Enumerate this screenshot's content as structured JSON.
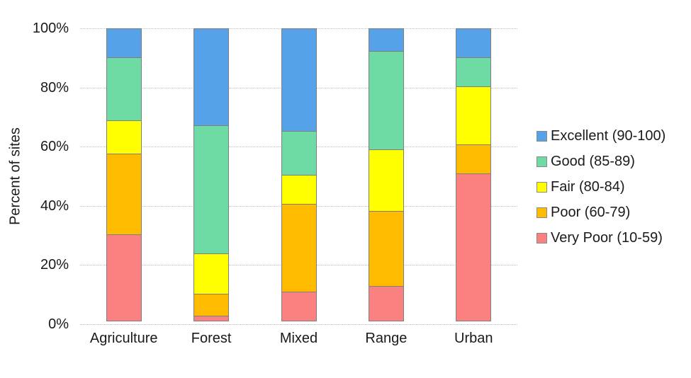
{
  "chart_data": {
    "type": "bar",
    "subtype": "stacked_percent",
    "title": "",
    "ylabel": "Percent of sites",
    "xlabel": "",
    "ylim": [
      0,
      100
    ],
    "grid": true,
    "legend_position": "right",
    "gridline_color": "#bdbdbd",
    "segment_border_color": "#7f7f7f",
    "categories": [
      "Agriculture",
      "Forest",
      "Mixed",
      "Range",
      "Urban"
    ],
    "y_ticks": [
      "100%",
      "80%",
      "60%",
      "40%",
      "20%",
      "0%"
    ],
    "series": [
      {
        "name": "Excellent (90-100)",
        "color": "#55a2e8",
        "values": [
          10,
          33,
          35,
          8,
          10
        ]
      },
      {
        "name": "Good (85-89)",
        "color": "#6edaa4",
        "values": [
          21.5,
          43.5,
          15,
          33.5,
          10
        ]
      },
      {
        "name": "Fair (80-84)",
        "color": "#ffff00",
        "values": [
          11.5,
          14,
          10,
          21,
          20
        ]
      },
      {
        "name": "Poor (60-79)",
        "color": "#ffbb00",
        "values": [
          27.5,
          7.5,
          30,
          25.5,
          10
        ]
      },
      {
        "name": "Very Poor (10-59)",
        "color": "#fb8080",
        "values": [
          29.5,
          2,
          10,
          12,
          50
        ]
      }
    ]
  }
}
